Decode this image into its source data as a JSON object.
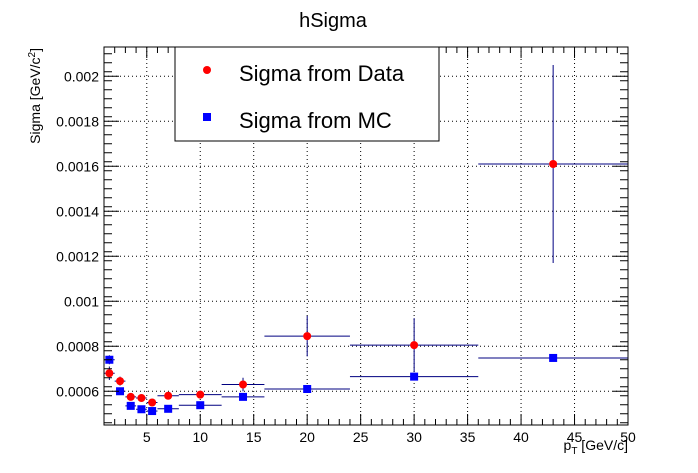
{
  "chart_data": {
    "type": "scatter",
    "title": "hSigma",
    "xlabel_main": "p",
    "xlabel_sub": "T",
    "xlabel_units": " [GeV/c]",
    "ylabel_main": "Sigma [GeV/c",
    "ylabel_sup": "2",
    "ylabel_end": "]",
    "xlim": [
      1,
      50
    ],
    "ylim": [
      0.00045,
      0.00213
    ],
    "grid": true,
    "legend_position": "top-center",
    "x_ticks": [
      5,
      10,
      15,
      20,
      25,
      30,
      35,
      40,
      45,
      50
    ],
    "x_tick_labels": [
      "5",
      "10",
      "15",
      "20",
      "25",
      "30",
      "35",
      "40",
      "45",
      "50"
    ],
    "y_ticks": [
      0.0006,
      0.0008,
      0.001,
      0.0012,
      0.0014,
      0.0016,
      0.0018,
      0.002
    ],
    "y_tick_labels": [
      "0.0006",
      "0.0008",
      "0.001",
      "0.0012",
      "0.0014",
      "0.0016",
      "0.0018",
      "0.002"
    ],
    "series": [
      {
        "name": "Sigma from Data",
        "marker": "circle",
        "color": "#ff0000",
        "error_color": "#000080",
        "points": [
          {
            "x": 1.5,
            "xerr": 0.5,
            "y": 0.00068,
            "yerr": 3e-05
          },
          {
            "x": 2.5,
            "xerr": 0.5,
            "y": 0.000645,
            "yerr": 2e-05
          },
          {
            "x": 3.5,
            "xerr": 0.5,
            "y": 0.000575,
            "yerr": 1.5e-05
          },
          {
            "x": 4.5,
            "xerr": 0.5,
            "y": 0.00057,
            "yerr": 1.5e-05
          },
          {
            "x": 5.5,
            "xerr": 0.5,
            "y": 0.00055,
            "yerr": 1.5e-05
          },
          {
            "x": 7,
            "xerr": 1,
            "y": 0.00058,
            "yerr": 1.5e-05
          },
          {
            "x": 10,
            "xerr": 2,
            "y": 0.000585,
            "yerr": 1.5e-05
          },
          {
            "x": 14,
            "xerr": 2,
            "y": 0.00063,
            "yerr": 3e-05
          },
          {
            "x": 20,
            "xerr": 4,
            "y": 0.000845,
            "yerr": 9e-05
          },
          {
            "x": 30,
            "xerr": 6,
            "y": 0.000805,
            "yerr": 0.00012
          },
          {
            "x": 43,
            "xerr": 7,
            "y": 0.00161,
            "yerr": 0.00044
          }
        ]
      },
      {
        "name": "Sigma from MC",
        "marker": "square",
        "color": "#0000ff",
        "error_color": "#000080",
        "points": [
          {
            "x": 1.5,
            "xerr": 0.5,
            "y": 0.00074,
            "yerr": 2e-05
          },
          {
            "x": 2.5,
            "xerr": 0.5,
            "y": 0.0006,
            "yerr": 1e-05
          },
          {
            "x": 3.5,
            "xerr": 0.5,
            "y": 0.000535,
            "yerr": 1e-05
          },
          {
            "x": 4.5,
            "xerr": 0.5,
            "y": 0.00052,
            "yerr": 1e-05
          },
          {
            "x": 5.5,
            "xerr": 0.5,
            "y": 0.000512,
            "yerr": 1e-05
          },
          {
            "x": 7,
            "xerr": 1,
            "y": 0.000522,
            "yerr": 1e-05
          },
          {
            "x": 10,
            "xerr": 2,
            "y": 0.000538,
            "yerr": 1e-05
          },
          {
            "x": 14,
            "xerr": 2,
            "y": 0.000575,
            "yerr": 1e-05
          },
          {
            "x": 20,
            "xerr": 4,
            "y": 0.00061,
            "yerr": 1e-05
          },
          {
            "x": 30,
            "xerr": 6,
            "y": 0.000665,
            "yerr": 1e-05
          },
          {
            "x": 43,
            "xerr": 7,
            "y": 0.000748,
            "yerr": 1e-05
          }
        ]
      }
    ]
  }
}
